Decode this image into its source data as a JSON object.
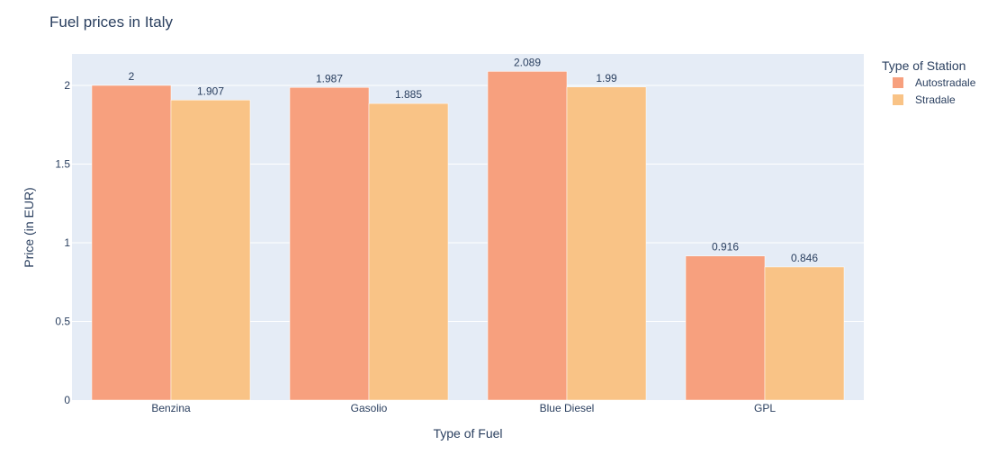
{
  "chart_data": {
    "type": "bar",
    "title": "Fuel prices in Italy",
    "xlabel": "Type of Fuel",
    "ylabel": "Price (in EUR)",
    "categories": [
      "Benzina",
      "Gasolio",
      "Blue Diesel",
      "GPL"
    ],
    "series": [
      {
        "name": "Autostradale",
        "values": [
          2,
          1.987,
          2.089,
          0.916
        ],
        "labels": [
          "2",
          "1.987",
          "2.089",
          "0.916"
        ],
        "color": "#f7a07e"
      },
      {
        "name": "Stradale",
        "values": [
          1.907,
          1.885,
          1.99,
          0.846
        ],
        "labels": [
          "1.907",
          "1.885",
          "1.99",
          "0.846"
        ],
        "color": "#f9c386"
      }
    ],
    "ylim": [
      0,
      2.2
    ],
    "yticks": [
      0,
      0.5,
      1,
      1.5,
      2
    ],
    "ytick_labels": [
      "0",
      "0.5",
      "1",
      "1.5",
      "2"
    ],
    "grid": true,
    "plot_background": "#e5ecf6",
    "legend": {
      "title": "Type of Station",
      "placement": "top-right"
    }
  }
}
